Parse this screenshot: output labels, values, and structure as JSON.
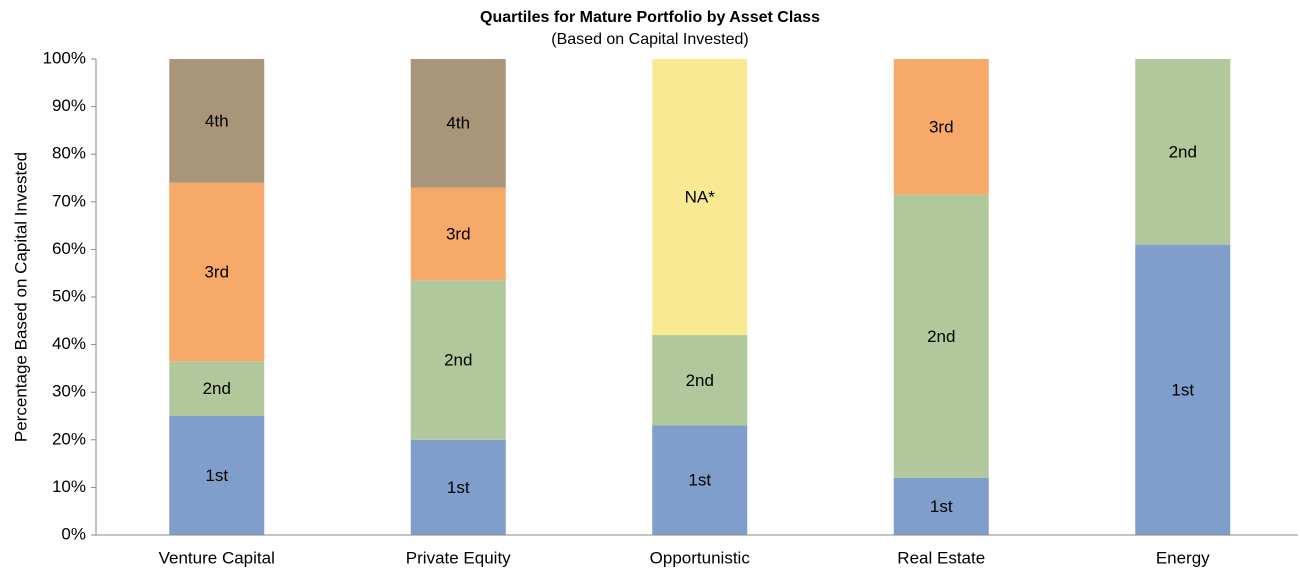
{
  "chart_data": {
    "type": "stacked_bar",
    "title": "Quartiles for Mature Portfolio by Asset Class",
    "subtitle": "(Based on Capital Invested)",
    "y_label": "Percentage Based on Capital Invested",
    "categories": [
      "Venture Capital",
      "Private Equity",
      "Opportunistic",
      "Real Estate",
      "Energy"
    ],
    "series": [
      {
        "name": "1st",
        "color": "#809ecb",
        "values": [
          25,
          20,
          23,
          12,
          61
        ]
      },
      {
        "name": "2nd",
        "color": "#b0c89c",
        "values": [
          11.5,
          33.5,
          19,
          59.5,
          39
        ]
      },
      {
        "name": "3rd",
        "color": "#f6a968",
        "values": [
          37.5,
          19.5,
          null,
          28.5,
          null
        ]
      },
      {
        "name": "4th",
        "color": "#a8957a",
        "values": [
          26,
          27,
          null,
          null,
          null
        ]
      },
      {
        "name": "NA*",
        "color": "#f9e993",
        "values": [
          null,
          null,
          58,
          null,
          null
        ]
      }
    ],
    "ylim": [
      0,
      100
    ],
    "yticks": [
      {
        "value": 0,
        "label": "0%"
      },
      {
        "value": 10,
        "label": "10%"
      },
      {
        "value": 20,
        "label": "20%"
      },
      {
        "value": 30,
        "label": "30%"
      },
      {
        "value": 40,
        "label": "40%"
      },
      {
        "value": 50,
        "label": "50%"
      },
      {
        "value": 60,
        "label": "60%"
      },
      {
        "value": 70,
        "label": "70%"
      },
      {
        "value": 80,
        "label": "80%"
      },
      {
        "value": 90,
        "label": "90%"
      },
      {
        "value": 100,
        "label": "100%"
      }
    ],
    "grid": false
  }
}
